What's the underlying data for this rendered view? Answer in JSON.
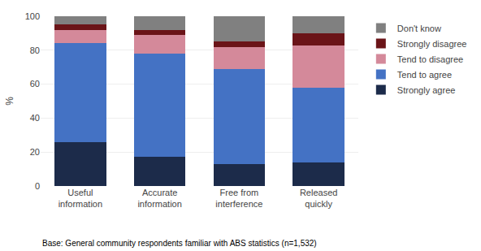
{
  "chart_data": {
    "type": "bar",
    "stacked": true,
    "categories": [
      "Useful\ninformation",
      "Accurate\ninformation",
      "Free from\ninterference",
      "Released\nquickly"
    ],
    "series": [
      {
        "name": "Strongly agree",
        "color": "#1c2b4a",
        "values": [
          26,
          17,
          13,
          14
        ]
      },
      {
        "name": "Tend to agree",
        "color": "#4472c4",
        "values": [
          58,
          61,
          56,
          44
        ]
      },
      {
        "name": "Tend to disagree",
        "color": "#d4899a",
        "values": [
          8,
          11,
          13,
          25
        ]
      },
      {
        "name": "Strongly disagree",
        "color": "#6b1418",
        "values": [
          3,
          3,
          3,
          7
        ]
      },
      {
        "name": "Don't know",
        "color": "#808080",
        "values": [
          5,
          8,
          15,
          10
        ]
      }
    ],
    "ylabel": "%",
    "ylim": [
      0,
      100
    ],
    "yticks": [
      0,
      20,
      40,
      60,
      80,
      100
    ],
    "grid": true,
    "legend": "right",
    "annotations": [
      "Base: General community respondents familiar with ABS statistics (n=1,532)"
    ]
  }
}
